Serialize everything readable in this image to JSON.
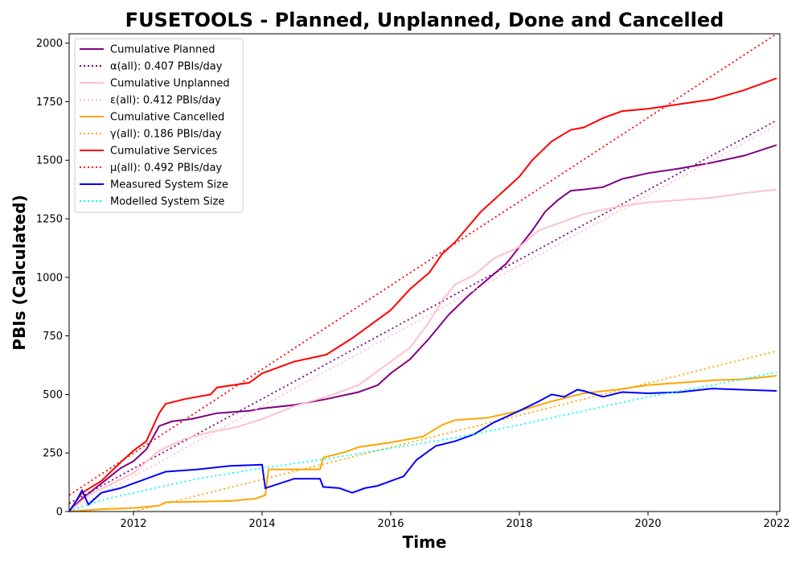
{
  "chart_data": {
    "type": "line",
    "title": "FUSETOOLS - Planned, Unplanned, Done  and Cancelled",
    "xlabel": "Time",
    "ylabel": "PBIs (Calculated)",
    "xlim": [
      2011.0,
      2022.05
    ],
    "ylim": [
      0,
      2040
    ],
    "xticks": [
      2012,
      2014,
      2016,
      2018,
      2020,
      2022
    ],
    "yticks": [
      0,
      250,
      500,
      750,
      1000,
      1250,
      1500,
      1750,
      2000
    ],
    "grid": false,
    "legend_position": "top-left",
    "series": [
      {
        "name": "Cumulative Planned",
        "style": "solid",
        "color": "#800080",
        "points": [
          [
            2011.0,
            0
          ],
          [
            2011.2,
            55
          ],
          [
            2011.5,
            120
          ],
          [
            2011.8,
            185
          ],
          [
            2012.0,
            215
          ],
          [
            2012.2,
            265
          ],
          [
            2012.4,
            365
          ],
          [
            2012.6,
            385
          ],
          [
            2012.9,
            395
          ],
          [
            2013.3,
            420
          ],
          [
            2013.8,
            430
          ],
          [
            2014.0,
            440
          ],
          [
            2014.5,
            455
          ],
          [
            2015.0,
            480
          ],
          [
            2015.5,
            510
          ],
          [
            2015.8,
            540
          ],
          [
            2016.0,
            590
          ],
          [
            2016.3,
            650
          ],
          [
            2016.6,
            740
          ],
          [
            2016.9,
            840
          ],
          [
            2017.2,
            920
          ],
          [
            2017.5,
            990
          ],
          [
            2017.8,
            1060
          ],
          [
            2018.0,
            1130
          ],
          [
            2018.2,
            1200
          ],
          [
            2018.4,
            1280
          ],
          [
            2018.6,
            1330
          ],
          [
            2018.8,
            1370
          ],
          [
            2019.0,
            1375
          ],
          [
            2019.3,
            1385
          ],
          [
            2019.6,
            1420
          ],
          [
            2020.0,
            1445
          ],
          [
            2020.5,
            1465
          ],
          [
            2021.0,
            1490
          ],
          [
            2021.5,
            1520
          ],
          [
            2022.0,
            1565
          ]
        ]
      },
      {
        "name": "α(all): 0.407 PBIs/day",
        "style": "dotted",
        "color": "#800080",
        "points": [
          [
            2011.0,
            35
          ],
          [
            2022.0,
            1670
          ]
        ]
      },
      {
        "name": "Cumulative Unplanned",
        "style": "solid",
        "color": "#ffc0cb",
        "points": [
          [
            2011.0,
            0
          ],
          [
            2011.3,
            70
          ],
          [
            2011.6,
            110
          ],
          [
            2012.0,
            165
          ],
          [
            2012.4,
            260
          ],
          [
            2012.8,
            310
          ],
          [
            2013.2,
            340
          ],
          [
            2013.6,
            360
          ],
          [
            2014.0,
            395
          ],
          [
            2014.5,
            450
          ],
          [
            2015.0,
            490
          ],
          [
            2015.5,
            540
          ],
          [
            2016.0,
            640
          ],
          [
            2016.3,
            700
          ],
          [
            2016.6,
            810
          ],
          [
            2016.8,
            900
          ],
          [
            2017.0,
            970
          ],
          [
            2017.3,
            1010
          ],
          [
            2017.6,
            1080
          ],
          [
            2018.0,
            1130
          ],
          [
            2018.3,
            1200
          ],
          [
            2018.6,
            1230
          ],
          [
            2019.0,
            1270
          ],
          [
            2019.5,
            1300
          ],
          [
            2020.0,
            1320
          ],
          [
            2020.5,
            1330
          ],
          [
            2021.0,
            1340
          ],
          [
            2021.5,
            1360
          ],
          [
            2022.0,
            1375
          ]
        ]
      },
      {
        "name": "ε(all): 0.412 PBIs/day",
        "style": "dotted",
        "color": "#ffc0cb",
        "points": [
          [
            2011.0,
            0
          ],
          [
            2022.0,
            1650
          ]
        ]
      },
      {
        "name": "Cumulative Cancelled",
        "style": "solid",
        "color": "#ffa500",
        "points": [
          [
            2011.0,
            0
          ],
          [
            2011.5,
            10
          ],
          [
            2012.0,
            15
          ],
          [
            2012.4,
            25
          ],
          [
            2012.5,
            40
          ],
          [
            2013.0,
            42
          ],
          [
            2013.5,
            45
          ],
          [
            2013.9,
            55
          ],
          [
            2014.05,
            70
          ],
          [
            2014.1,
            180
          ],
          [
            2014.9,
            180
          ],
          [
            2014.95,
            230
          ],
          [
            2015.3,
            255
          ],
          [
            2015.5,
            275
          ],
          [
            2016.0,
            295
          ],
          [
            2016.5,
            320
          ],
          [
            2016.8,
            370
          ],
          [
            2017.0,
            390
          ],
          [
            2017.5,
            400
          ],
          [
            2018.0,
            430
          ],
          [
            2018.5,
            470
          ],
          [
            2019.0,
            505
          ],
          [
            2019.5,
            520
          ],
          [
            2020.0,
            540
          ],
          [
            2020.5,
            550
          ],
          [
            2021.0,
            560
          ],
          [
            2021.5,
            565
          ],
          [
            2022.0,
            580
          ]
        ]
      },
      {
        "name": "γ(all): 0.186 PBIs/day",
        "style": "dotted",
        "color": "#ffa500",
        "points": [
          [
            2012.0,
            0
          ],
          [
            2022.0,
            685
          ]
        ]
      },
      {
        "name": "Cumulative Services",
        "style": "solid",
        "color": "#ff0000",
        "points": [
          [
            2011.0,
            0
          ],
          [
            2011.2,
            80
          ],
          [
            2011.5,
            130
          ],
          [
            2011.8,
            210
          ],
          [
            2012.0,
            260
          ],
          [
            2012.2,
            300
          ],
          [
            2012.4,
            420
          ],
          [
            2012.5,
            460
          ],
          [
            2012.8,
            480
          ],
          [
            2013.2,
            500
          ],
          [
            2013.3,
            530
          ],
          [
            2013.8,
            550
          ],
          [
            2014.0,
            590
          ],
          [
            2014.5,
            640
          ],
          [
            2015.0,
            670
          ],
          [
            2015.4,
            740
          ],
          [
            2015.7,
            800
          ],
          [
            2016.0,
            860
          ],
          [
            2016.3,
            950
          ],
          [
            2016.6,
            1020
          ],
          [
            2016.8,
            1100
          ],
          [
            2017.0,
            1150
          ],
          [
            2017.4,
            1280
          ],
          [
            2017.8,
            1380
          ],
          [
            2018.0,
            1430
          ],
          [
            2018.2,
            1500
          ],
          [
            2018.5,
            1580
          ],
          [
            2018.8,
            1630
          ],
          [
            2019.0,
            1640
          ],
          [
            2019.3,
            1680
          ],
          [
            2019.6,
            1710
          ],
          [
            2020.0,
            1720
          ],
          [
            2020.5,
            1740
          ],
          [
            2021.0,
            1760
          ],
          [
            2021.5,
            1800
          ],
          [
            2022.0,
            1850
          ]
        ]
      },
      {
        "name": "μ(all): 0.492 PBIs/day",
        "style": "dotted",
        "color": "#ff0000",
        "points": [
          [
            2011.0,
            70
          ],
          [
            2022.0,
            2040
          ]
        ]
      },
      {
        "name": "Measured System Size",
        "style": "solid",
        "color": "#0000ff",
        "points": [
          [
            2011.0,
            0
          ],
          [
            2011.1,
            40
          ],
          [
            2011.2,
            90
          ],
          [
            2011.3,
            30
          ],
          [
            2011.5,
            80
          ],
          [
            2011.8,
            100
          ],
          [
            2012.0,
            120
          ],
          [
            2012.3,
            150
          ],
          [
            2012.5,
            170
          ],
          [
            2013.0,
            180
          ],
          [
            2013.5,
            195
          ],
          [
            2014.0,
            200
          ],
          [
            2014.05,
            100
          ],
          [
            2014.5,
            140
          ],
          [
            2014.9,
            140
          ],
          [
            2014.95,
            105
          ],
          [
            2015.2,
            100
          ],
          [
            2015.4,
            80
          ],
          [
            2015.6,
            100
          ],
          [
            2015.8,
            110
          ],
          [
            2016.0,
            130
          ],
          [
            2016.2,
            150
          ],
          [
            2016.4,
            220
          ],
          [
            2016.7,
            280
          ],
          [
            2017.0,
            300
          ],
          [
            2017.3,
            330
          ],
          [
            2017.6,
            380
          ],
          [
            2018.0,
            430
          ],
          [
            2018.3,
            470
          ],
          [
            2018.5,
            500
          ],
          [
            2018.7,
            490
          ],
          [
            2018.9,
            520
          ],
          [
            2019.0,
            515
          ],
          [
            2019.3,
            490
          ],
          [
            2019.6,
            510
          ],
          [
            2020.0,
            505
          ],
          [
            2020.5,
            510
          ],
          [
            2021.0,
            525
          ],
          [
            2021.5,
            520
          ],
          [
            2022.0,
            515
          ]
        ]
      },
      {
        "name": "Modelled System Size",
        "style": "dotted",
        "color": "#00ffff",
        "points": [
          [
            2011.0,
            0
          ],
          [
            2011.3,
            30
          ],
          [
            2011.6,
            55
          ],
          [
            2012.0,
            80
          ],
          [
            2013.0,
            140
          ],
          [
            2014.0,
            185
          ],
          [
            2015.0,
            225
          ],
          [
            2016.0,
            270
          ],
          [
            2017.0,
            315
          ],
          [
            2018.0,
            370
          ],
          [
            2019.0,
            430
          ],
          [
            2020.0,
            490
          ],
          [
            2021.0,
            540
          ],
          [
            2022.0,
            595
          ]
        ]
      }
    ]
  }
}
